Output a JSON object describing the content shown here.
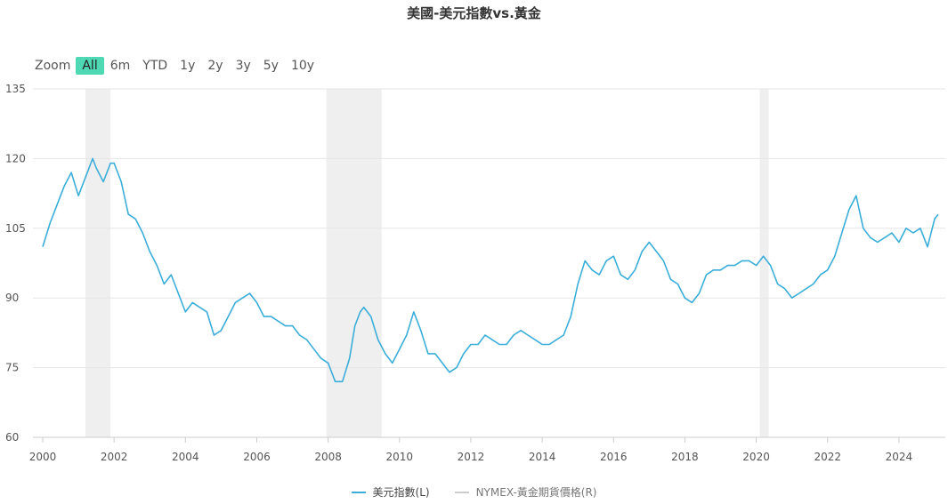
{
  "chart_data": {
    "type": "line",
    "title": "美國-美元指數vs.黃金",
    "xlabel": "",
    "ylabel": "",
    "xlim": [
      2000,
      2025.3
    ],
    "ylim": [
      60,
      135
    ],
    "y_ticks": [
      "60",
      "75",
      "90",
      "105",
      "120",
      "135"
    ],
    "x_ticks": [
      "2000",
      "2002",
      "2004",
      "2006",
      "2008",
      "2010",
      "2012",
      "2014",
      "2016",
      "2018",
      "2020",
      "2022",
      "2024"
    ],
    "grid": true,
    "legend_position": "bottom",
    "recession_bands": [
      [
        2001.2,
        2001.9
      ],
      [
        2007.95,
        2009.5
      ],
      [
        2020.1,
        2020.35
      ]
    ],
    "series": [
      {
        "name": "美元指數(L)",
        "color": "#3aaed8",
        "x": [
          2000.0,
          2000.2,
          2000.4,
          2000.6,
          2000.8,
          2001.0,
          2001.2,
          2001.4,
          2001.5,
          2001.7,
          2001.9,
          2002.0,
          2002.2,
          2002.4,
          2002.6,
          2002.8,
          2003.0,
          2003.2,
          2003.4,
          2003.6,
          2003.8,
          2004.0,
          2004.2,
          2004.4,
          2004.6,
          2004.8,
          2005.0,
          2005.2,
          2005.4,
          2005.6,
          2005.8,
          2006.0,
          2006.2,
          2006.4,
          2006.6,
          2006.8,
          2007.0,
          2007.2,
          2007.4,
          2007.6,
          2007.8,
          2008.0,
          2008.2,
          2008.4,
          2008.6,
          2008.75,
          2008.9,
          2009.0,
          2009.2,
          2009.4,
          2009.6,
          2009.8,
          2010.0,
          2010.2,
          2010.4,
          2010.6,
          2010.8,
          2011.0,
          2011.2,
          2011.4,
          2011.6,
          2011.8,
          2012.0,
          2012.2,
          2012.4,
          2012.6,
          2012.8,
          2013.0,
          2013.2,
          2013.4,
          2013.6,
          2013.8,
          2014.0,
          2014.2,
          2014.4,
          2014.6,
          2014.8,
          2015.0,
          2015.2,
          2015.4,
          2015.6,
          2015.8,
          2016.0,
          2016.2,
          2016.4,
          2016.6,
          2016.8,
          2017.0,
          2017.2,
          2017.4,
          2017.6,
          2017.8,
          2018.0,
          2018.2,
          2018.4,
          2018.6,
          2018.8,
          2019.0,
          2019.2,
          2019.4,
          2019.6,
          2019.8,
          2020.0,
          2020.2,
          2020.4,
          2020.6,
          2020.8,
          2021.0,
          2021.2,
          2021.4,
          2021.6,
          2021.8,
          2022.0,
          2022.2,
          2022.4,
          2022.6,
          2022.8,
          2023.0,
          2023.2,
          2023.4,
          2023.6,
          2023.8,
          2024.0,
          2024.2,
          2024.4,
          2024.6,
          2024.8,
          2025.0,
          2025.1
        ],
        "values": [
          101,
          106,
          110,
          114,
          117,
          112,
          116,
          120,
          118,
          115,
          119,
          119,
          115,
          108,
          107,
          104,
          100,
          97,
          93,
          95,
          91,
          87,
          89,
          88,
          87,
          82,
          83,
          86,
          89,
          90,
          91,
          89,
          86,
          86,
          85,
          84,
          84,
          82,
          81,
          79,
          77,
          76,
          72,
          72,
          77,
          84,
          87,
          88,
          86,
          81,
          78,
          76,
          79,
          82,
          87,
          83,
          78,
          78,
          76,
          74,
          75,
          78,
          80,
          80,
          82,
          81,
          80,
          80,
          82,
          83,
          82,
          81,
          80,
          80,
          81,
          82,
          86,
          93,
          98,
          96,
          95,
          98,
          99,
          95,
          94,
          96,
          100,
          102,
          100,
          98,
          94,
          93,
          90,
          89,
          91,
          95,
          96,
          96,
          97,
          97,
          98,
          98,
          97,
          99,
          97,
          93,
          92,
          90,
          91,
          92,
          93,
          95,
          96,
          99,
          104,
          109,
          112,
          105,
          103,
          102,
          103,
          104,
          102,
          105,
          104,
          105,
          101,
          107,
          108
        ]
      },
      {
        "name": "NYMEX-黃金期貨價格(R)",
        "color": "#cccccc",
        "x": [],
        "values": []
      }
    ]
  },
  "toolbar": {
    "zoom_label": "Zoom",
    "buttons": [
      "All",
      "6m",
      "YTD",
      "1y",
      "2y",
      "3y",
      "5y",
      "10y"
    ],
    "active": "All"
  }
}
